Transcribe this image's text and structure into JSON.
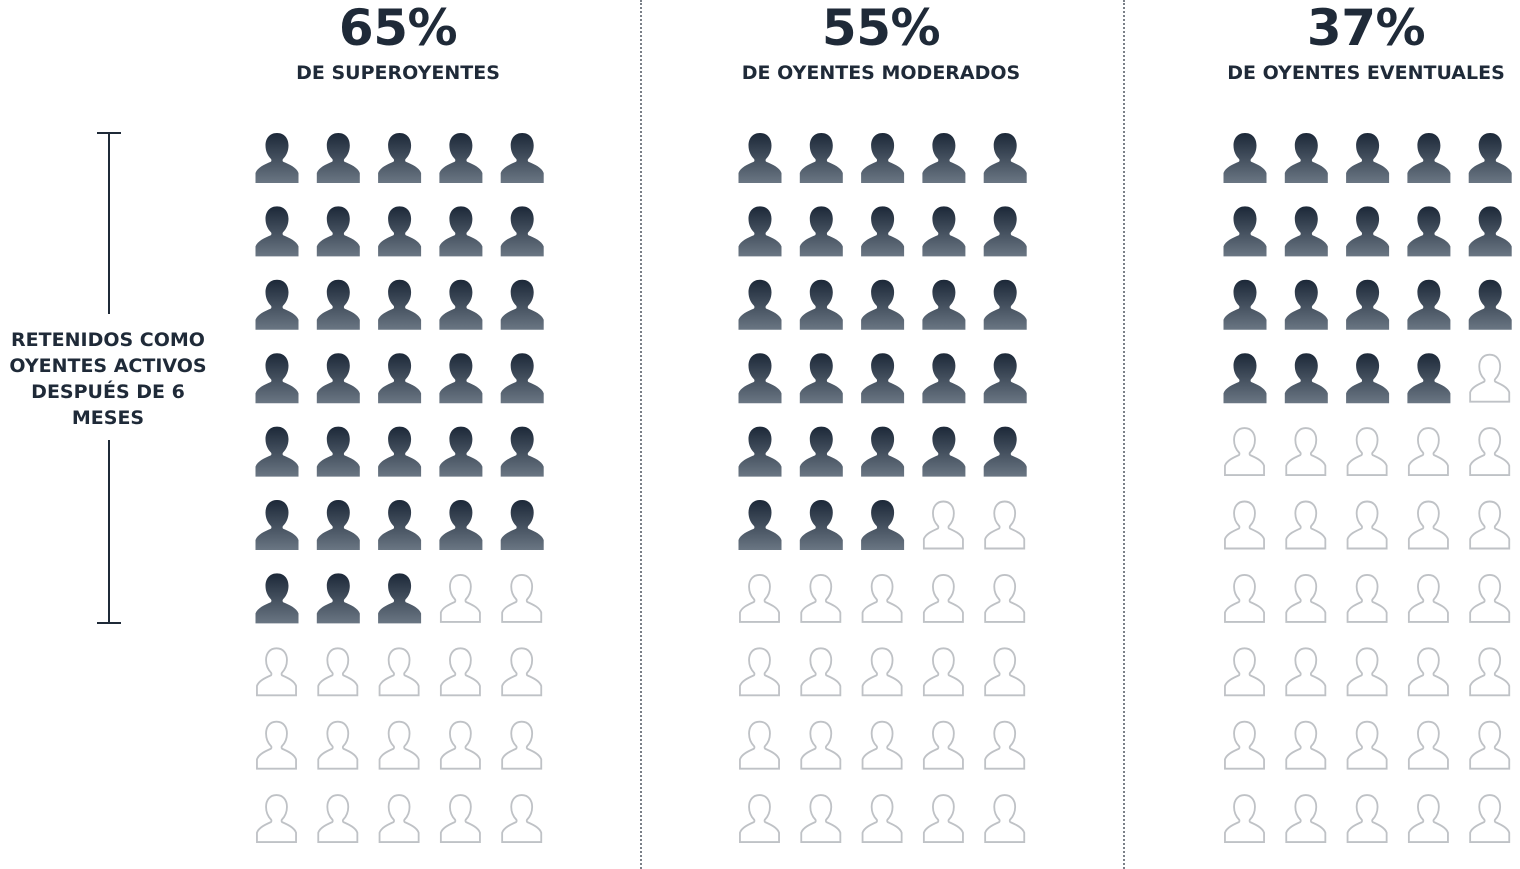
{
  "chart_data": {
    "type": "pictogram",
    "side_label": "RETENIDOS COMO OYENTES ACTIVOS DESPUÉS DE 6 MESES",
    "grid": {
      "rows": 10,
      "cols": 5,
      "total_icons": 50
    },
    "groups": [
      {
        "value_label": "65%",
        "label": "DE SUPEROYENTES",
        "value": 65
      },
      {
        "value_label": "55%",
        "label": "DE OYENTES MODERADOS",
        "value": 55
      },
      {
        "value_label": "37%",
        "label": "DE OYENTES EVENTUALES",
        "value": 37
      }
    ],
    "colors": {
      "filled_top": "#1c2838",
      "filled_bottom": "#6a7683",
      "empty_stroke": "#bfc2c6",
      "text": "#1f2a38",
      "divider": "#7a8088"
    }
  }
}
